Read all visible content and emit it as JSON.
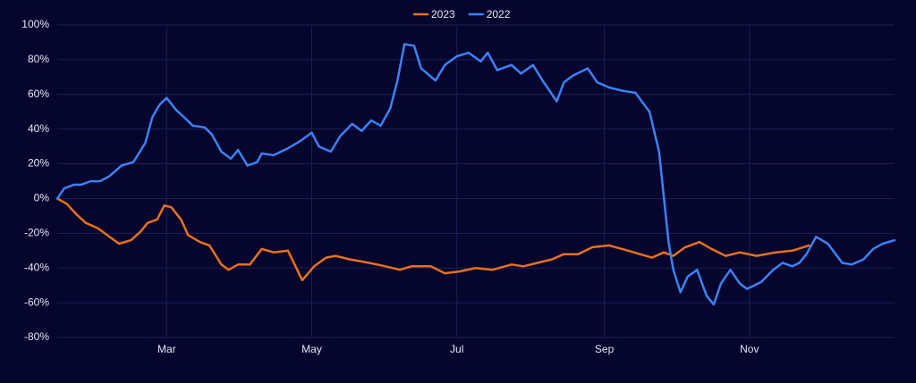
{
  "chart_data": {
    "type": "line",
    "series": [
      {
        "name": "2023",
        "color": "#e8711a",
        "x": [
          14,
          18,
          22,
          26,
          31,
          36,
          40,
          45,
          49,
          52,
          56,
          59,
          62,
          66,
          69,
          74,
          78,
          83,
          86,
          90,
          95,
          100,
          105,
          111,
          117,
          122,
          127,
          131,
          137,
          145,
          152,
          158,
          163,
          171,
          177,
          183,
          190,
          197,
          205,
          210,
          216,
          222,
          227,
          233,
          239,
          246,
          254,
          259,
          264,
          269,
          273,
          278,
          284,
          289,
          295,
          301,
          308,
          316,
          323,
          330
        ],
        "values": [
          0,
          -3,
          -9,
          -14,
          -17,
          -22,
          -26,
          -24,
          -19,
          -14,
          -12,
          -4,
          -5,
          -12,
          -21,
          -25,
          -27,
          -38,
          -41,
          -38,
          -38,
          -29,
          -31,
          -30,
          -47,
          -39,
          -34,
          -33,
          -35,
          -37,
          -39,
          -41,
          -39,
          -39,
          -43,
          -42,
          -40,
          -41,
          -38,
          -39,
          -37,
          -35,
          -32,
          -32,
          -28,
          -27,
          -30,
          -32,
          -34,
          -31,
          -33,
          -28,
          -25,
          -29,
          -33,
          -31,
          -33,
          -31,
          -30,
          -27
        ]
      },
      {
        "name": "2022",
        "color": "#3b82f6",
        "x": [
          14,
          17,
          21,
          24,
          28,
          32,
          36,
          41,
          46,
          51,
          54,
          57,
          60,
          64,
          68,
          71,
          76,
          79,
          83,
          87,
          90,
          94,
          98,
          100,
          105,
          111,
          116,
          121,
          124,
          129,
          133,
          138,
          142,
          146,
          150,
          154,
          157,
          160,
          164,
          167,
          173,
          177,
          182,
          187,
          192,
          195,
          199,
          205,
          209,
          214,
          218,
          224,
          227,
          231,
          237,
          241,
          246,
          252,
          257,
          263,
          267,
          271,
          273,
          276,
          279,
          283,
          287,
          290,
          293,
          297,
          301,
          304,
          310,
          315,
          319,
          323,
          326,
          329,
          333,
          338,
          344,
          348,
          353,
          357,
          361,
          366
        ],
        "values": [
          0,
          6,
          8,
          8,
          10,
          10,
          13,
          19,
          21,
          32,
          47,
          54,
          58,
          51,
          46,
          42,
          41,
          37,
          27,
          23,
          28,
          19,
          21,
          26,
          25,
          29,
          33,
          38,
          30,
          27,
          36,
          43,
          39,
          45,
          42,
          52,
          68,
          89,
          88,
          75,
          68,
          77,
          82,
          84,
          79,
          84,
          74,
          77,
          72,
          77,
          68,
          56,
          67,
          71,
          75,
          67,
          64,
          62,
          61,
          50,
          27,
          -25,
          -41,
          -54,
          -45,
          -41,
          -56,
          -61,
          -49,
          -41,
          -49,
          -52,
          -48,
          -41,
          -37,
          -39,
          -37,
          -32,
          -22,
          -26,
          -37,
          -38,
          -35,
          -29,
          -26,
          -24
        ]
      }
    ],
    "xlim": [
      14,
      366
    ],
    "xticks": [
      {
        "value": 60,
        "label": "Mar"
      },
      {
        "value": 121,
        "label": "May"
      },
      {
        "value": 182,
        "label": "Jul"
      },
      {
        "value": 244,
        "label": "Sep"
      },
      {
        "value": 305,
        "label": "Nov"
      }
    ],
    "ylim": [
      -80,
      100
    ],
    "yticks": [
      {
        "value": -80,
        "label": "-80%"
      },
      {
        "value": -60,
        "label": "-60%"
      },
      {
        "value": -40,
        "label": "-40%"
      },
      {
        "value": -20,
        "label": "-20%"
      },
      {
        "value": 0,
        "label": "0%"
      },
      {
        "value": 20,
        "label": "20%"
      },
      {
        "value": 40,
        "label": "40%"
      },
      {
        "value": 60,
        "label": "60%"
      },
      {
        "value": 80,
        "label": "80%"
      },
      {
        "value": 100,
        "label": "100%"
      }
    ],
    "grid": true
  }
}
